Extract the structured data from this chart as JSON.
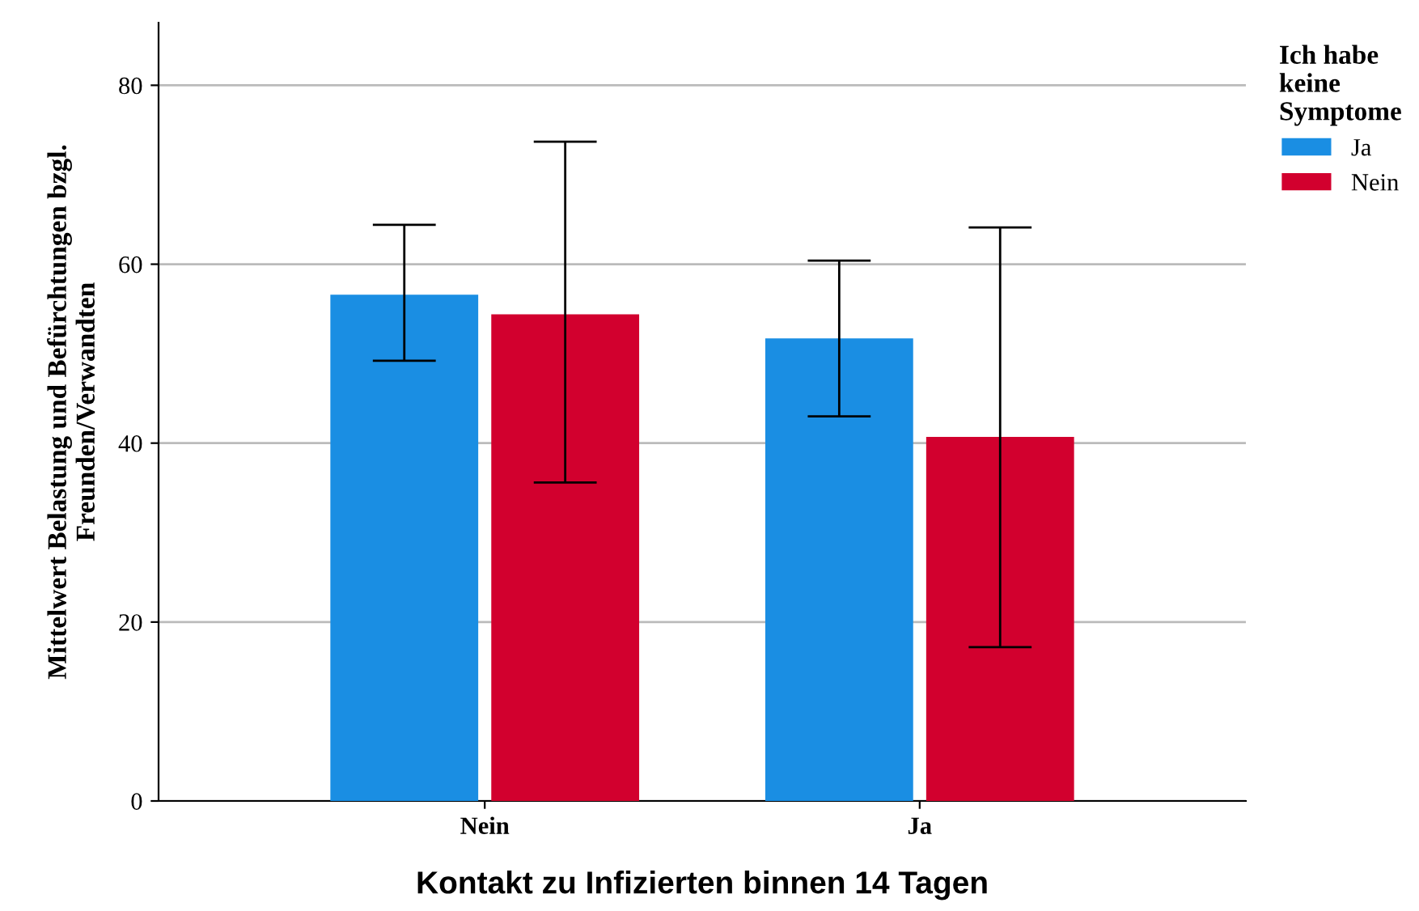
{
  "chart_data": {
    "type": "bar",
    "xlabel": "Kontakt zu Infizierten binnen 14 Tagen",
    "ylabel": "Mittelwert Belastung und Befürchtungen bzgl.\nFreunden/Verwandten",
    "legend_title": "Ich habe\nkeine\nSymptome",
    "categories": [
      "Nein",
      "Ja"
    ],
    "series": [
      {
        "name": "Ja",
        "color": "#1a8ee3",
        "values": [
          56.6,
          51.7
        ],
        "errors": [
          [
            49.2,
            64.4
          ],
          [
            43.0,
            60.4
          ]
        ]
      },
      {
        "name": "Nein",
        "color": "#d2002e",
        "values": [
          54.4,
          40.7
        ],
        "errors": [
          [
            35.6,
            73.7
          ],
          [
            17.2,
            64.1
          ]
        ]
      }
    ],
    "ylim": [
      0,
      87
    ],
    "yticks": [
      0,
      20,
      40,
      60,
      80
    ],
    "grid": "y",
    "legend": "top right"
  }
}
